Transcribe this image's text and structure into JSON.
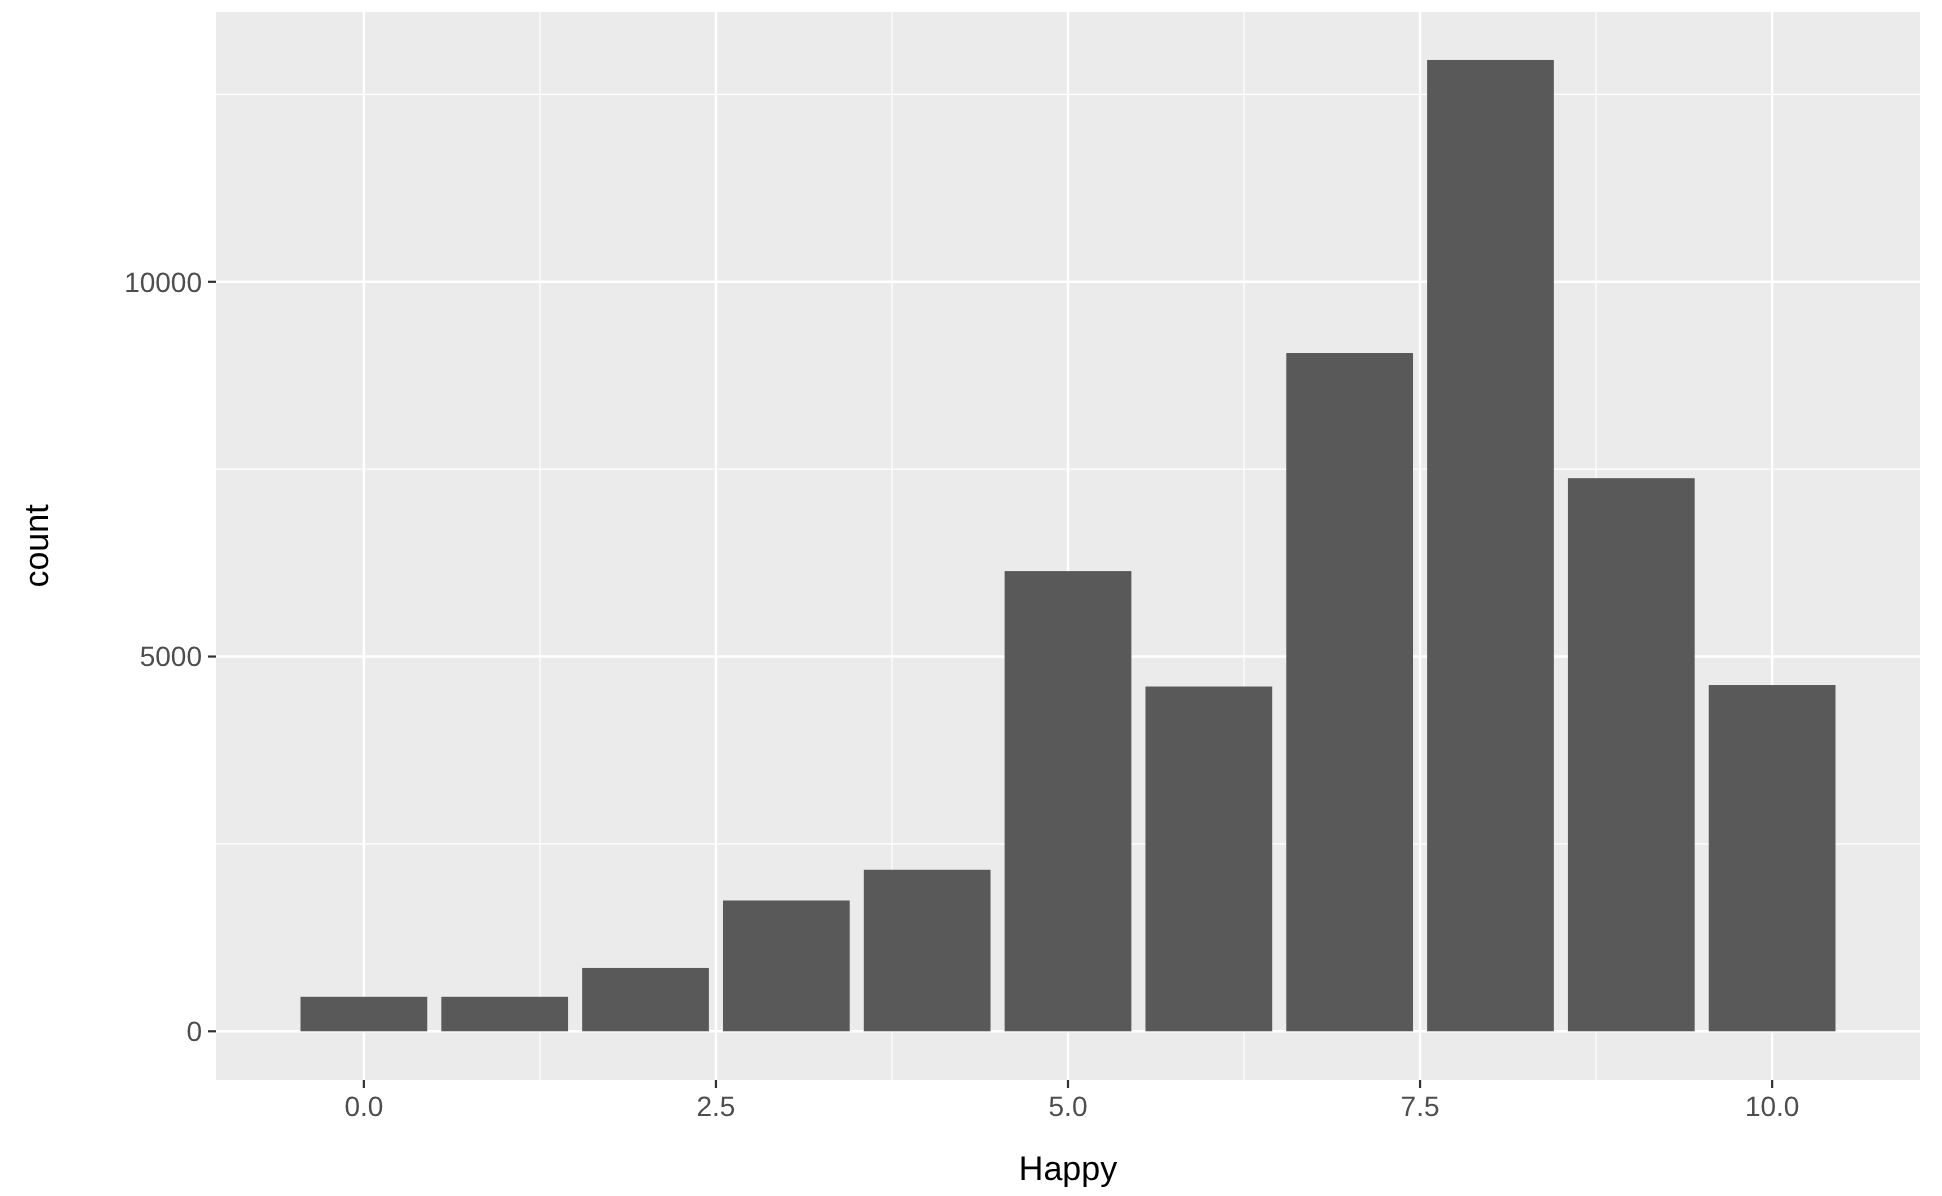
{
  "chart_data": {
    "type": "bar",
    "xlabel": "Happy",
    "ylabel": "count",
    "x": [
      0,
      1,
      2,
      3,
      4,
      5,
      6,
      7,
      8,
      9,
      10
    ],
    "values": [
      460,
      460,
      845,
      1745,
      2155,
      6140,
      4600,
      9050,
      12960,
      7380,
      4620
    ],
    "color": "#595959",
    "xlim": [
      -1.05,
      11.05
    ],
    "ylim": [
      -650,
      13600
    ],
    "xticks": [
      {
        "value": 0,
        "label": "0.0"
      },
      {
        "value": 2.5,
        "label": "2.5"
      },
      {
        "value": 5,
        "label": "5.0"
      },
      {
        "value": 7.5,
        "label": "7.5"
      },
      {
        "value": 10,
        "label": "10.0"
      }
    ],
    "yticks": [
      0,
      5000,
      10000
    ],
    "grid": true
  }
}
